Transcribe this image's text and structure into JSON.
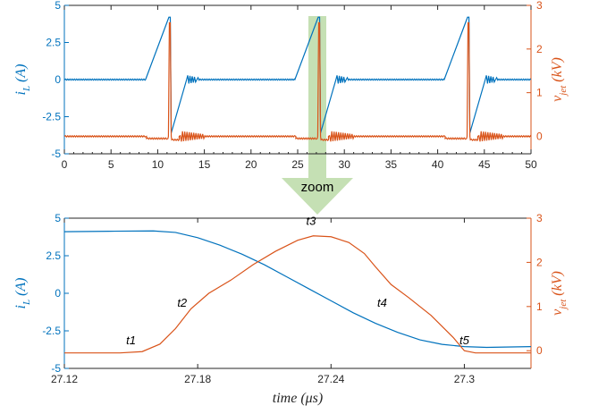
{
  "colors": {
    "left_axis": "#0072BD",
    "right_axis": "#D95319",
    "zoom_arrow": "#C5E0B4"
  },
  "zoom_label": "zoom",
  "chart_data": [
    {
      "type": "line",
      "title": "",
      "xlabel": "",
      "xlim": [
        0,
        50
      ],
      "xticks": [
        0,
        5,
        10,
        15,
        20,
        25,
        30,
        35,
        40,
        45,
        50
      ],
      "ylim_left": [
        -5,
        5
      ],
      "yticks_left": [
        "-5",
        "-2.5",
        "0",
        "2.5",
        "5"
      ],
      "ylabel_left": {
        "main": "i",
        "sub": "L",
        "rest": " (A)"
      },
      "ylim_right": [
        -0.4,
        3
      ],
      "yticks_right": [
        "0",
        "1",
        "2",
        "3"
      ],
      "ylabel_right": {
        "main": "v",
        "sub": "jet",
        "rest": " (kV)"
      },
      "grid": false,
      "series": [
        {
          "axis": "left",
          "color": "#0072BD",
          "points": [
            [
              0,
              0
            ],
            [
              8.7,
              0
            ],
            [
              11.2,
              4.2
            ],
            [
              11.35,
              4.2
            ],
            [
              11.45,
              -3.6
            ],
            [
              13.1,
              0
            ],
            [
              14.2,
              0
            ],
            [
              24.7,
              0
            ],
            [
              27.2,
              4.2
            ],
            [
              27.35,
              4.2
            ],
            [
              27.45,
              -3.6
            ],
            [
              29.1,
              0
            ],
            [
              30.2,
              0
            ],
            [
              40.7,
              0
            ],
            [
              43.2,
              4.2
            ],
            [
              43.35,
              4.2
            ],
            [
              43.45,
              -3.6
            ],
            [
              45.1,
              0
            ],
            [
              46.2,
              0
            ],
            [
              50,
              0
            ]
          ],
          "ripples": [
            [
              13.1,
              14.4,
              0.3
            ],
            [
              29.1,
              30.4,
              0.3
            ],
            [
              45.1,
              46.4,
              0.3
            ]
          ],
          "noise": 0.04
        },
        {
          "axis": "right",
          "color": "#D95319",
          "points": [
            [
              0,
              0
            ],
            [
              8.8,
              0
            ],
            [
              8.8,
              -0.05
            ],
            [
              11.1,
              -0.05
            ],
            [
              11.15,
              0
            ],
            [
              11.25,
              2.6
            ],
            [
              11.35,
              2.6
            ],
            [
              11.45,
              0
            ],
            [
              11.5,
              -0.08
            ],
            [
              12.3,
              -0.08
            ],
            [
              12.3,
              0
            ],
            [
              24.8,
              0
            ],
            [
              24.8,
              -0.05
            ],
            [
              27.1,
              -0.05
            ],
            [
              27.15,
              0
            ],
            [
              27.25,
              2.6
            ],
            [
              27.35,
              2.6
            ],
            [
              27.45,
              0
            ],
            [
              27.5,
              -0.08
            ],
            [
              28.3,
              -0.08
            ],
            [
              28.3,
              0
            ],
            [
              40.8,
              0
            ],
            [
              40.8,
              -0.05
            ],
            [
              43.1,
              -0.05
            ],
            [
              43.15,
              0
            ],
            [
              43.25,
              2.6
            ],
            [
              43.35,
              2.6
            ],
            [
              43.45,
              0
            ],
            [
              43.5,
              -0.08
            ],
            [
              44.3,
              -0.08
            ],
            [
              44.3,
              0
            ],
            [
              50,
              0
            ]
          ],
          "ripples": [
            [
              12.5,
              15,
              0.12
            ],
            [
              28.5,
              31,
              0.12
            ],
            [
              44.5,
              47,
              0.12
            ]
          ],
          "noise": 0.015
        }
      ]
    },
    {
      "type": "line",
      "title": "",
      "xlabel": "time (μs)",
      "xlim": [
        27.12,
        27.33
      ],
      "xticks": [
        "27.12",
        "27.18",
        "27.24",
        "27.3"
      ],
      "ylim_left": [
        -5,
        5
      ],
      "yticks_left": [
        "-5",
        "-2.5",
        "0",
        "2.5",
        "5"
      ],
      "ylabel_left": {
        "main": "i",
        "sub": "L",
        "rest": " (A)"
      },
      "ylim_right": [
        -0.4,
        3
      ],
      "yticks_right": [
        "0",
        "1",
        "2",
        "3"
      ],
      "ylabel_right": {
        "main": "v",
        "sub": "jet",
        "rest": " (kV)"
      },
      "grid": false,
      "series": [
        {
          "axis": "left",
          "color": "#0072BD",
          "points": [
            [
              27.12,
              4.1
            ],
            [
              27.14,
              4.13
            ],
            [
              27.16,
              4.15
            ],
            [
              27.17,
              4.05
            ],
            [
              27.18,
              3.7
            ],
            [
              27.19,
              3.2
            ],
            [
              27.2,
              2.6
            ],
            [
              27.21,
              1.9
            ],
            [
              27.22,
              1.1
            ],
            [
              27.23,
              0.3
            ],
            [
              27.24,
              -0.5
            ],
            [
              27.25,
              -1.3
            ],
            [
              27.26,
              -2.0
            ],
            [
              27.27,
              -2.6
            ],
            [
              27.28,
              -3.1
            ],
            [
              27.29,
              -3.4
            ],
            [
              27.3,
              -3.55
            ],
            [
              27.31,
              -3.6
            ],
            [
              27.33,
              -3.55
            ]
          ]
        },
        {
          "axis": "right",
          "color": "#D95319",
          "points": [
            [
              27.12,
              -0.05
            ],
            [
              27.145,
              -0.05
            ],
            [
              27.155,
              -0.02
            ],
            [
              27.163,
              0.15
            ],
            [
              27.17,
              0.5
            ],
            [
              27.177,
              0.95
            ],
            [
              27.185,
              1.3
            ],
            [
              27.195,
              1.6
            ],
            [
              27.205,
              1.95
            ],
            [
              27.215,
              2.25
            ],
            [
              27.225,
              2.5
            ],
            [
              27.232,
              2.6
            ],
            [
              27.24,
              2.58
            ],
            [
              27.248,
              2.45
            ],
            [
              27.255,
              2.2
            ],
            [
              27.26,
              1.9
            ],
            [
              27.267,
              1.5
            ],
            [
              27.275,
              1.2
            ],
            [
              27.285,
              0.8
            ],
            [
              27.295,
              0.3
            ],
            [
              27.3,
              0
            ],
            [
              27.305,
              -0.05
            ],
            [
              27.33,
              -0.05
            ]
          ],
          "annotations": [
            {
              "text": "t1",
              "x": 27.15,
              "y": 0.15
            },
            {
              "text": "t2",
              "x": 27.173,
              "y": 1.0
            },
            {
              "text": "t3",
              "x": 27.231,
              "y": 2.85
            },
            {
              "text": "t4",
              "x": 27.263,
              "y": 1.0
            },
            {
              "text": "t5",
              "x": 27.3,
              "y": 0.15
            }
          ]
        }
      ]
    }
  ]
}
